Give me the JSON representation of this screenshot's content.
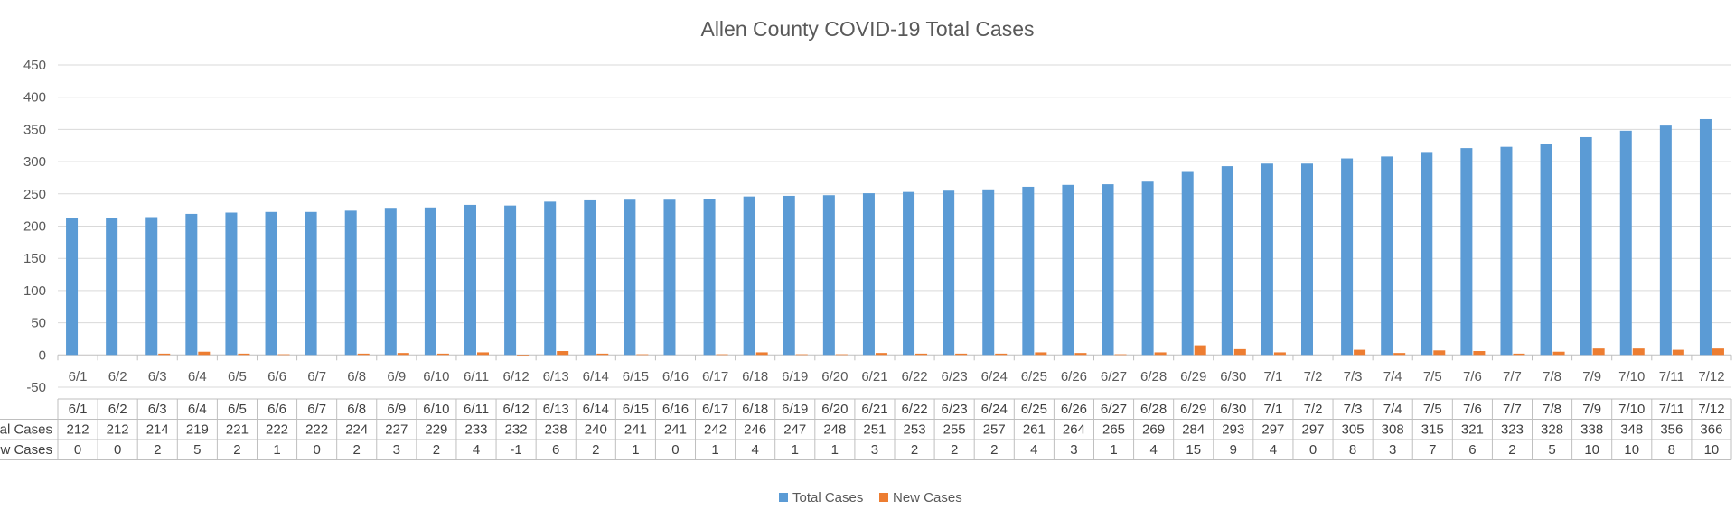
{
  "chart_data": {
    "type": "bar",
    "title": "Allen County COVID-19 Total Cases",
    "xlabel": "",
    "ylabel": "",
    "ylim": [
      -50,
      450
    ],
    "yticks": [
      -50,
      0,
      50,
      100,
      150,
      200,
      250,
      300,
      350,
      400,
      450
    ],
    "grid": true,
    "legend_position": "bottom",
    "data_table": true,
    "categories": [
      "6/1",
      "6/2",
      "6/3",
      "6/4",
      "6/5",
      "6/6",
      "6/7",
      "6/8",
      "6/9",
      "6/10",
      "6/11",
      "6/12",
      "6/13",
      "6/14",
      "6/15",
      "6/16",
      "6/17",
      "6/18",
      "6/19",
      "6/20",
      "6/21",
      "6/22",
      "6/23",
      "6/24",
      "6/25",
      "6/26",
      "6/27",
      "6/28",
      "6/29",
      "6/30",
      "7/1",
      "7/2",
      "7/3",
      "7/4",
      "7/5",
      "7/6",
      "7/7",
      "7/8",
      "7/9",
      "7/10",
      "7/11",
      "7/12"
    ],
    "series": [
      {
        "name": "Total Cases",
        "color": "#5B9BD5",
        "values": [
          212,
          212,
          214,
          219,
          221,
          222,
          222,
          224,
          227,
          229,
          233,
          232,
          238,
          240,
          241,
          241,
          242,
          246,
          247,
          248,
          251,
          253,
          255,
          257,
          261,
          264,
          265,
          269,
          284,
          293,
          297,
          297,
          305,
          308,
          315,
          321,
          323,
          328,
          338,
          348,
          356,
          366
        ]
      },
      {
        "name": "New Cases",
        "color": "#ED7D31",
        "values": [
          0,
          0,
          2,
          5,
          2,
          1,
          0,
          2,
          3,
          2,
          4,
          -1,
          6,
          2,
          1,
          0,
          1,
          4,
          1,
          1,
          3,
          2,
          2,
          2,
          4,
          3,
          1,
          4,
          15,
          9,
          4,
          0,
          8,
          3,
          7,
          6,
          2,
          5,
          10,
          10,
          8,
          10
        ]
      }
    ]
  }
}
